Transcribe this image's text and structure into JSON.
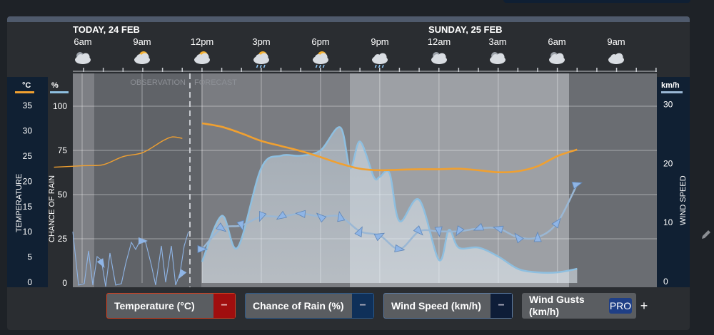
{
  "header": {
    "day1_label": "TODAY, 24 FEB",
    "day2_label": "SUNDAY, 25 FEB",
    "time_labels": [
      "6am",
      "9am",
      "12pm",
      "3pm",
      "6pm",
      "9pm",
      "12am",
      "3am",
      "6am",
      "9am"
    ],
    "weather_icons": [
      "cloudy-night-icon",
      "partly-cloudy-icon",
      "partly-cloudy-icon",
      "sun-rain-icon",
      "sun-rain-icon",
      "rain-cloud-icon",
      "cloudy-night-icon",
      "cloudy-night-icon",
      "cloudy-night-icon",
      "cloudy-icon"
    ]
  },
  "chart_data": {
    "type": "line",
    "x_hours": [
      4.5,
      31
    ],
    "markers": {
      "observation": "OBSERVATION",
      "forecast": "FORECAST",
      "split_hour": 11.4
    },
    "axes": {
      "temperature": {
        "unit": "°C",
        "label": "TEMPERATURE",
        "ticks": [
          0,
          5,
          10,
          15,
          20,
          25,
          30,
          35
        ]
      },
      "rain": {
        "unit": "%",
        "label": "CHANCE OF RAIN",
        "ticks": [
          0,
          25,
          50,
          75,
          100
        ]
      },
      "wind": {
        "unit": "km/h",
        "label": "WIND SPEED",
        "ticks": [
          0,
          10,
          20,
          30
        ]
      }
    },
    "series": [
      {
        "name": "Temperature (°C)",
        "color": "#f0a030",
        "x": [
          4.5,
          6,
          7,
          8,
          9,
          10,
          10.5,
          11,
          12,
          13,
          14,
          15,
          16,
          17,
          18,
          19,
          20,
          21,
          22,
          23,
          24,
          25,
          26,
          27,
          28,
          29,
          30,
          31
        ],
        "values": [
          22.8,
          23.1,
          23.3,
          24.9,
          25.7,
          28,
          28.8,
          28.5,
          31.5,
          30.8,
          29.5,
          28,
          27,
          26,
          24.8,
          23.5,
          22.5,
          22.2,
          22.3,
          22.4,
          22.4,
          22.5,
          22.2,
          21.8,
          22,
          23,
          25,
          26.3
        ]
      },
      {
        "name": "Chance of Rain (%)",
        "color": "#8ebfe0",
        "x": [
          12,
          13,
          13.8,
          15,
          16,
          17,
          18,
          19,
          19.5,
          20,
          20.7,
          21,
          21.5,
          22,
          23,
          24,
          24.5,
          25,
          26,
          27,
          28,
          29,
          30,
          31
        ],
        "values": [
          12,
          38,
          20,
          65,
          72,
          72,
          75,
          88,
          65,
          80,
          60,
          60,
          62,
          35,
          47,
          13,
          30,
          20,
          20,
          15,
          8,
          6,
          6,
          8
        ]
      },
      {
        "name": "Wind Speed (km/h)",
        "color": "#9ab7d4",
        "x": [
          12,
          13,
          14,
          15,
          16,
          17,
          18,
          19,
          20,
          21,
          22,
          23,
          24,
          25,
          26,
          27,
          28,
          29,
          30,
          31
        ],
        "values": [
          5.5,
          9,
          9.5,
          11,
          11,
          11.5,
          11,
          11,
          8.5,
          7.8,
          5.5,
          8.5,
          8.5,
          8.5,
          9,
          9,
          7.5,
          7.5,
          10,
          16.5
        ]
      }
    ]
  },
  "legend": {
    "temperature": "Temperature (°C)",
    "rain": "Chance of Rain (%)",
    "wind": "Wind Speed (km/h)",
    "gusts": "Wind Gusts (km/h)",
    "pro": "PRO",
    "minus": "−",
    "plus": "+"
  },
  "colors": {
    "temperature": "#f0a030",
    "rain": "#8ebfe0",
    "wind": "#9ab7d4"
  }
}
